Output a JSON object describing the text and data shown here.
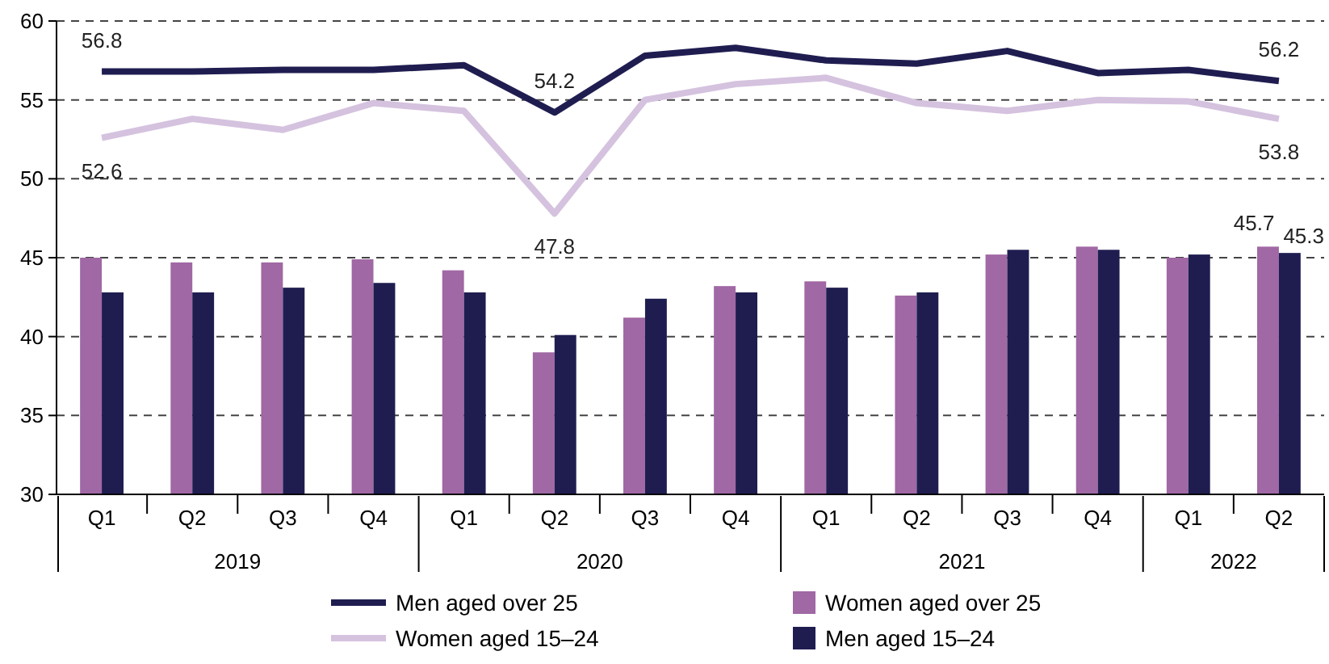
{
  "chart_data": {
    "type": "bar",
    "categories": [
      "Q1",
      "Q2",
      "Q3",
      "Q4",
      "Q1",
      "Q2",
      "Q3",
      "Q4",
      "Q1",
      "Q2",
      "Q3",
      "Q4",
      "Q1",
      "Q2"
    ],
    "series": [
      {
        "name": "Men aged over 25",
        "type": "line",
        "color": "#1f1d50",
        "values": [
          56.8,
          56.8,
          56.9,
          56.9,
          57.2,
          54.2,
          57.8,
          58.3,
          57.5,
          57.3,
          58.1,
          56.7,
          56.9,
          56.2
        ],
        "value_labels": [
          "56.8",
          null,
          null,
          null,
          null,
          "54.2",
          null,
          null,
          null,
          null,
          null,
          null,
          null,
          "56.2"
        ]
      },
      {
        "name": "Women aged over 25",
        "color": "#a068a4",
        "values": [
          45.0,
          44.7,
          44.7,
          44.9,
          44.2,
          39.0,
          41.2,
          43.2,
          43.5,
          42.6,
          45.2,
          45.7,
          45.0,
          45.7
        ],
        "value_labels": [
          null,
          null,
          null,
          null,
          null,
          null,
          null,
          null,
          null,
          null,
          null,
          null,
          null,
          "45.7"
        ]
      },
      {
        "name": "Women aged 15–24",
        "type": "line",
        "color": "#d5c2df",
        "values": [
          52.6,
          53.8,
          53.1,
          54.8,
          54.3,
          47.8,
          55.0,
          56.0,
          56.4,
          54.8,
          54.3,
          55.0,
          54.9,
          53.8
        ],
        "value_labels": [
          "52.6",
          null,
          null,
          null,
          null,
          "47.8",
          null,
          null,
          null,
          null,
          null,
          null,
          null,
          "53.8"
        ]
      },
      {
        "name": "Men aged 15–24",
        "color": "#1f1d50",
        "values": [
          42.8,
          42.8,
          43.1,
          43.4,
          42.8,
          40.1,
          42.4,
          42.8,
          43.1,
          42.8,
          45.5,
          45.5,
          45.2,
          45.3
        ],
        "value_labels": [
          null,
          null,
          null,
          null,
          null,
          null,
          null,
          null,
          null,
          null,
          null,
          null,
          null,
          "45.3"
        ]
      }
    ],
    "annotations": [
      "2019",
      "2020",
      "2021",
      "2022"
    ],
    "ylim": [
      30,
      60
    ],
    "yticks": [
      30,
      35,
      40,
      45,
      50,
      55,
      60
    ],
    "grid": "y",
    "legend": "bottom",
    "line_style": "solid",
    "marker": "none"
  }
}
